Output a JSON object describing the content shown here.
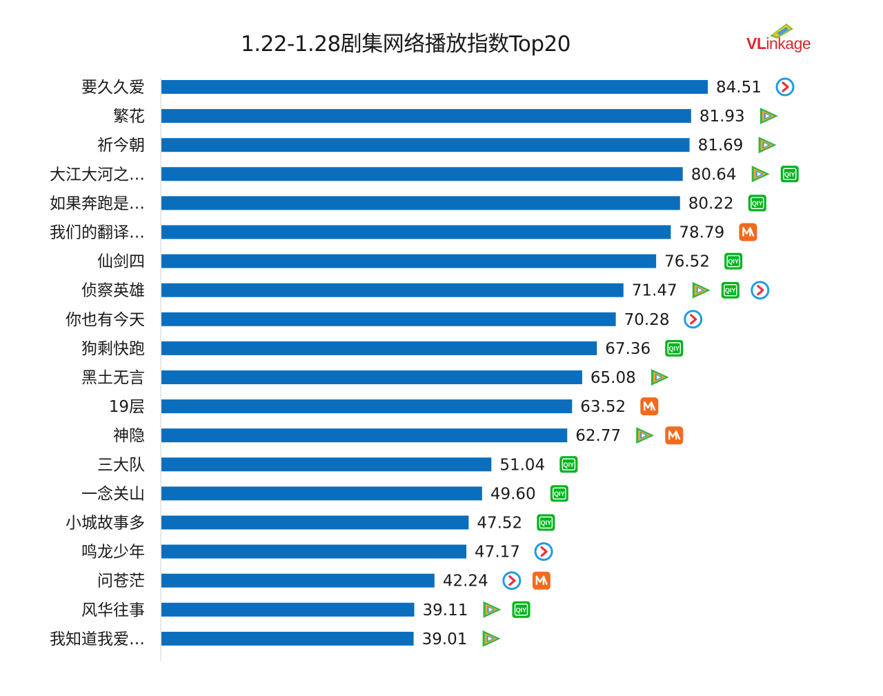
{
  "title": "1.22-1.28剧集网络播放指数Top20",
  "brand": {
    "prefix": "VL",
    "suffix": "inkage"
  },
  "colors": {
    "bar": "#0a6ebd",
    "axis": "#d0d0d0",
    "label": "#1a1a1a",
    "youku_blue": "#1e9ce6",
    "youku_red": "#e8313b",
    "tencent_green": "#30b44b",
    "tencent_orange": "#f5a623",
    "tencent_blue": "#2b9be3",
    "iqiyi_green": "#00b31f",
    "mgtv_orange": "#f26b1d"
  },
  "icon_legend": {
    "youku": "youku-icon",
    "tencent": "tencent-video-icon",
    "iqiyi": "iqiyi-icon",
    "mgtv": "mgtv-icon"
  },
  "chart_data": {
    "type": "bar",
    "orientation": "horizontal",
    "title": "1.22-1.28剧集网络播放指数Top20",
    "xlim": [
      0,
      100
    ],
    "grid": false,
    "categories": [
      "要久久爱",
      "繁花",
      "祈今朝",
      "大江大河之…",
      "如果奔跑是…",
      "我们的翻译…",
      "仙剑四",
      "侦察英雄",
      "你也有今天",
      "狗剩快跑",
      "黑土无言",
      "19层",
      "神隐",
      "三大队",
      "一念关山",
      "小城故事多",
      "鸣龙少年",
      "问苍茫",
      "风华往事",
      "我知道我爱…"
    ],
    "values": [
      84.51,
      81.93,
      81.69,
      80.64,
      80.22,
      78.79,
      76.52,
      71.47,
      70.28,
      67.36,
      65.08,
      63.52,
      62.77,
      51.04,
      49.6,
      47.52,
      47.17,
      42.24,
      39.11,
      39.01
    ],
    "value_labels": [
      "84.51",
      "81.93",
      "81.69",
      "80.64",
      "80.22",
      "78.79",
      "76.52",
      "71.47",
      "70.28",
      "67.36",
      "65.08",
      "63.52",
      "62.77",
      "51.04",
      "49.60",
      "47.52",
      "47.17",
      "42.24",
      "39.11",
      "39.01"
    ],
    "platforms": [
      [
        "youku"
      ],
      [
        "tencent"
      ],
      [
        "tencent"
      ],
      [
        "tencent",
        "iqiyi"
      ],
      [
        "iqiyi"
      ],
      [
        "mgtv"
      ],
      [
        "iqiyi"
      ],
      [
        "tencent",
        "iqiyi",
        "youku"
      ],
      [
        "youku"
      ],
      [
        "iqiyi"
      ],
      [
        "tencent"
      ],
      [
        "mgtv"
      ],
      [
        "tencent",
        "mgtv"
      ],
      [
        "iqiyi"
      ],
      [
        "iqiyi"
      ],
      [
        "iqiyi"
      ],
      [
        "youku"
      ],
      [
        "youku",
        "mgtv"
      ],
      [
        "tencent",
        "iqiyi"
      ],
      [
        "tencent"
      ]
    ]
  }
}
